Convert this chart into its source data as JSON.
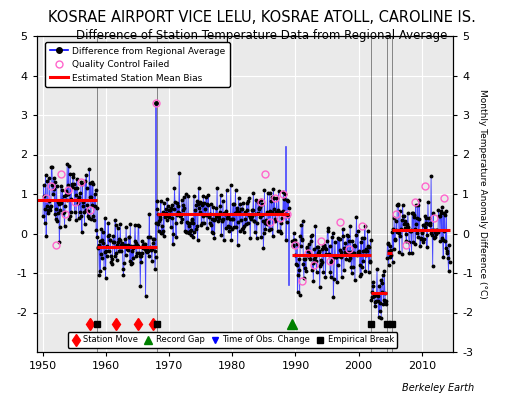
{
  "title": "KOSRAE AIRPORT VICE LELU, KOSRAE ATOLL, CAROLINE IS.",
  "subtitle": "Difference of Station Temperature Data from Regional Average",
  "ylabel": "Monthly Temperature Anomaly Difference (°C)",
  "xlabel_years": [
    1950,
    1960,
    1970,
    1980,
    1990,
    2000,
    2010
  ],
  "ylim": [
    -3,
    5
  ],
  "xlim": [
    1949,
    2015
  ],
  "yticks_left": [
    -2,
    -1,
    0,
    1,
    2,
    3,
    4,
    5
  ],
  "yticks_right": [
    -3,
    -2,
    -1,
    0,
    1,
    2,
    3,
    4,
    5
  ],
  "background_color": "#ffffff",
  "grid_color": "#cccccc",
  "title_fontsize": 10.5,
  "subtitle_fontsize": 8.5,
  "station_moves": [
    1957.5,
    1961.5,
    1965.0,
    1967.5
  ],
  "record_gaps": [
    1989.5
  ],
  "time_obs_changes": [],
  "empirical_breaks": [
    1958.5,
    1968.0,
    2002.0,
    2004.5,
    2005.3
  ],
  "bias_segments": [
    {
      "x_start": 1949,
      "x_end": 1958.5,
      "bias": 0.85
    },
    {
      "x_start": 1958.5,
      "x_end": 1968.0,
      "bias": -0.35
    },
    {
      "x_start": 1968.0,
      "x_end": 1989.0,
      "bias": 0.5
    },
    {
      "x_start": 1989.5,
      "x_end": 2002.0,
      "bias": -0.55
    },
    {
      "x_start": 2002.0,
      "x_end": 2004.5,
      "bias": -1.5
    },
    {
      "x_start": 2004.5,
      "x_end": 2005.3,
      "bias": -0.5
    },
    {
      "x_start": 2005.3,
      "x_end": 2014.5,
      "bias": 0.1
    }
  ],
  "marker_y": -2.3,
  "marker_y_line": -2.05
}
